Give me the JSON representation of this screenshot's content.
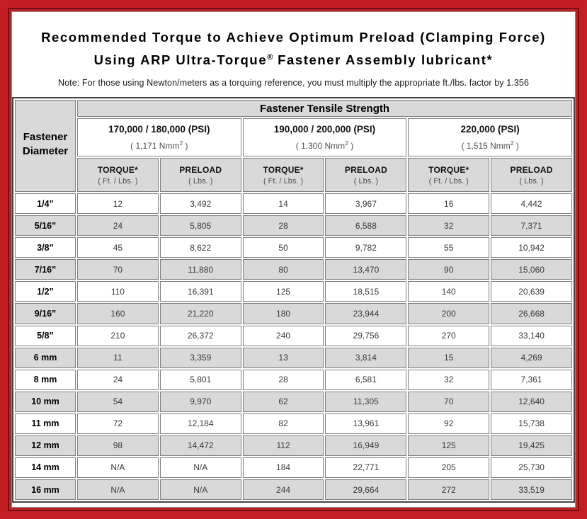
{
  "title": {
    "line1": "Recommended Torque to Achieve Optimum Preload (Clamping Force)",
    "line2_pre": "Using ARP Ultra-Torque",
    "line2_sup": "®",
    "line2_post": " Fastener Assembly lubricant*",
    "note": "Note: For those using Newton/meters as a torquing reference, you must multiply the appropriate ft./lbs. factor by 1.356"
  },
  "table": {
    "corner_line1": "Fastener",
    "corner_line2": "Diameter",
    "main_header": "Fastener Tensile Strength",
    "strength_groups": [
      {
        "psi": "170,000 / 180,000 (PSI)",
        "nmm_pre": "( 1,171 Nmm",
        "nmm_sup": "2",
        "nmm_post": " )"
      },
      {
        "psi": "190,000 / 200,000 (PSI)",
        "nmm_pre": "( 1,300 Nmm",
        "nmm_sup": "2",
        "nmm_post": " )"
      },
      {
        "psi": "220,000 (PSI)",
        "nmm_pre": "( 1,515 Nmm",
        "nmm_sup": "2",
        "nmm_post": " )"
      }
    ],
    "col_headers": {
      "torque_label": "TORQUE*",
      "torque_sub": "( Ft. / Lbs. )",
      "preload_label": "PRELOAD",
      "preload_sub": "( Lbs. )"
    },
    "rows": [
      {
        "diameter": "1/4”",
        "values": [
          "12",
          "3,492",
          "14",
          "3,967",
          "16",
          "4,442"
        ]
      },
      {
        "diameter": "5/16”",
        "values": [
          "24",
          "5,805",
          "28",
          "6,588",
          "32",
          "7,371"
        ]
      },
      {
        "diameter": "3/8”",
        "values": [
          "45",
          "8,622",
          "50",
          "9,782",
          "55",
          "10,942"
        ]
      },
      {
        "diameter": "7/16”",
        "values": [
          "70",
          "11,880",
          "80",
          "13,470",
          "90",
          "15,060"
        ]
      },
      {
        "diameter": "1/2”",
        "values": [
          "110",
          "16,391",
          "125",
          "18,515",
          "140",
          "20,639"
        ]
      },
      {
        "diameter": "9/16”",
        "values": [
          "160",
          "21,220",
          "180",
          "23,944",
          "200",
          "26,668"
        ]
      },
      {
        "diameter": "5/8”",
        "values": [
          "210",
          "26,372",
          "240",
          "29,756",
          "270",
          "33,140"
        ]
      },
      {
        "diameter": "6 mm",
        "values": [
          "11",
          "3,359",
          "13",
          "3,814",
          "15",
          "4,269"
        ]
      },
      {
        "diameter": "8 mm",
        "values": [
          "24",
          "5,801",
          "28",
          "6,581",
          "32",
          "7,361"
        ]
      },
      {
        "diameter": "10 mm",
        "values": [
          "54",
          "9,970",
          "62",
          "11,305",
          "70",
          "12,640"
        ]
      },
      {
        "diameter": "11 mm",
        "values": [
          "72",
          "12,184",
          "82",
          "13,961",
          "92",
          "15,738"
        ]
      },
      {
        "diameter": "12 mm",
        "values": [
          "98",
          "14,472",
          "112",
          "16,949",
          "125",
          "19,425"
        ]
      },
      {
        "diameter": "14 mm",
        "values": [
          "N/A",
          "N/A",
          "184",
          "22,771",
          "205",
          "25,730"
        ]
      },
      {
        "diameter": "16 mm",
        "values": [
          "N/A",
          "N/A",
          "244",
          "29,664",
          "272",
          "33,519"
        ]
      }
    ]
  },
  "colors": {
    "frame_red": "#c41e25",
    "frame_inner_line": "#6d1217",
    "table_outer_border": "#434343",
    "cell_border": "#7f7f7f",
    "shaded_row": "#d9d9d9",
    "text": "#000000"
  }
}
